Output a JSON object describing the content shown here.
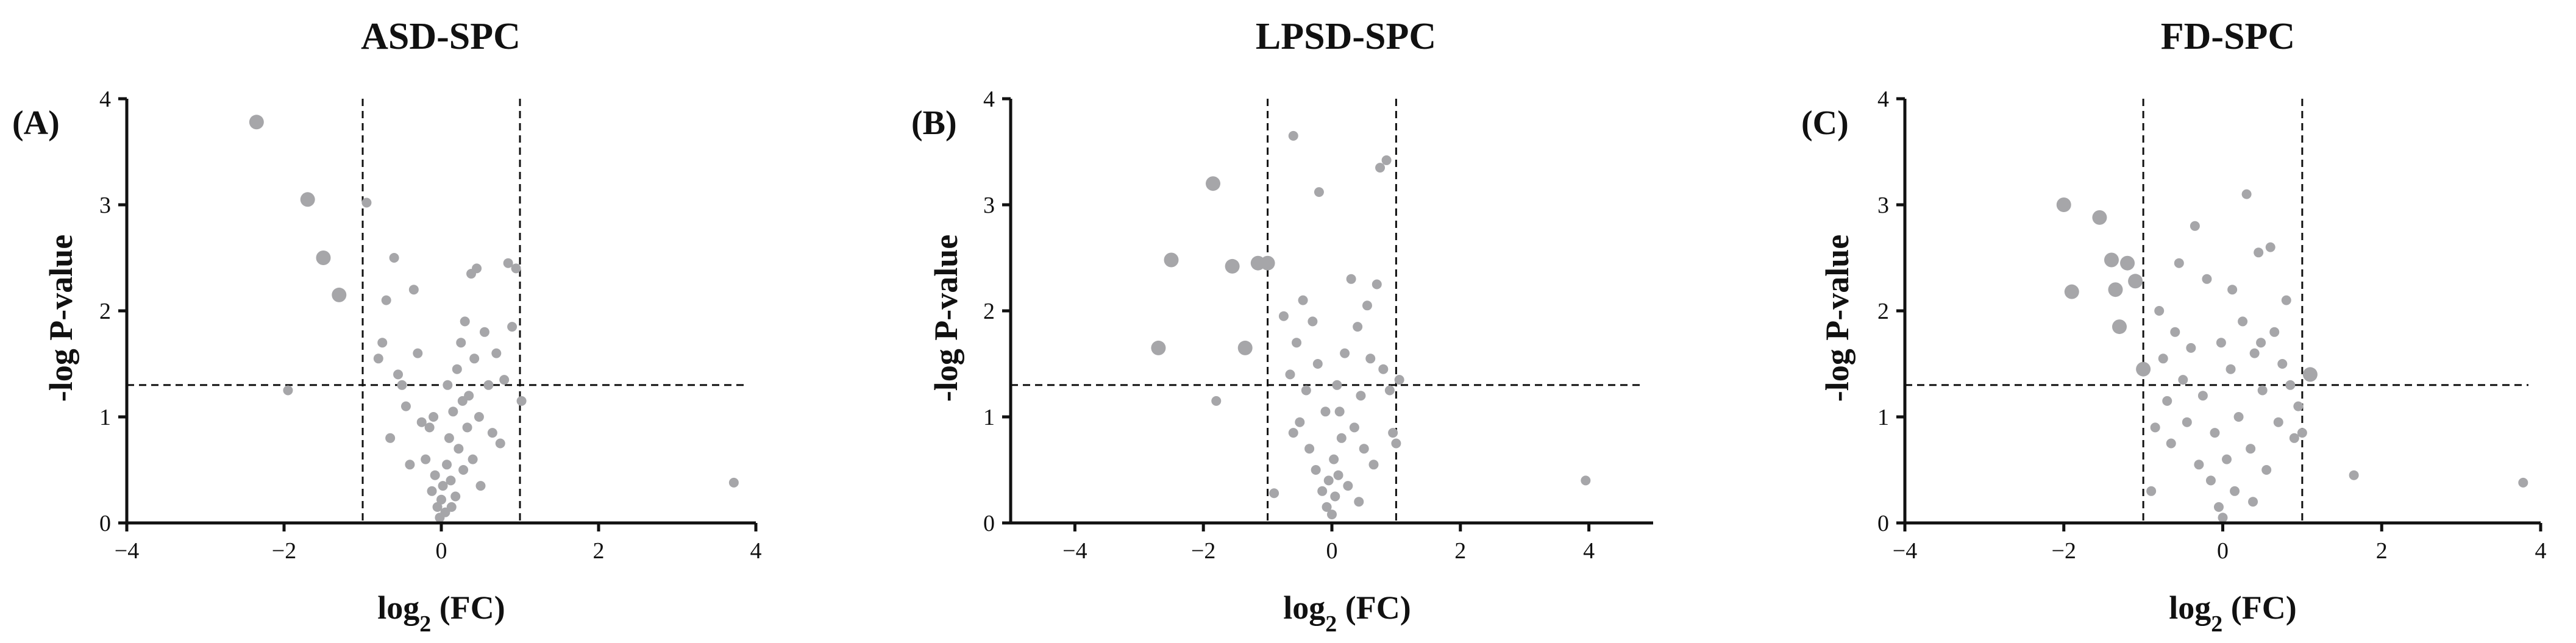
{
  "chart_data": [
    {
      "type": "scatter",
      "panel_label": "(A)",
      "title": "ASD-SPC",
      "xlabel": "log",
      "xlabel_sub": "2",
      "xlabel_suffix": " (FC)",
      "ylabel": "-log P-value",
      "xlim": [
        -4,
        4
      ],
      "ylim": [
        0,
        4
      ],
      "xticks": [
        -4,
        -2,
        0,
        2,
        4
      ],
      "yticks": [
        0,
        1,
        2,
        3,
        4
      ],
      "fc_threshold": [
        -1,
        1
      ],
      "p_threshold": 1.3,
      "grid": false,
      "point_color": "#a6a6a9",
      "large_points": [
        {
          "x": -2.35,
          "y": 3.78
        },
        {
          "x": -1.7,
          "y": 3.05
        },
        {
          "x": -1.5,
          "y": 2.5
        },
        {
          "x": -1.3,
          "y": 2.15
        }
      ],
      "points": [
        {
          "x": -1.95,
          "y": 1.25
        },
        {
          "x": -0.95,
          "y": 3.02
        },
        {
          "x": -0.8,
          "y": 1.55
        },
        {
          "x": -0.75,
          "y": 1.7
        },
        {
          "x": -0.7,
          "y": 2.1
        },
        {
          "x": -0.6,
          "y": 2.5
        },
        {
          "x": -0.55,
          "y": 1.4
        },
        {
          "x": -0.5,
          "y": 1.3
        },
        {
          "x": -0.45,
          "y": 1.1
        },
        {
          "x": -0.65,
          "y": 0.8
        },
        {
          "x": -0.35,
          "y": 2.2
        },
        {
          "x": -0.3,
          "y": 1.6
        },
        {
          "x": -0.25,
          "y": 0.95
        },
        {
          "x": -0.2,
          "y": 0.6
        },
        {
          "x": -0.15,
          "y": 0.9
        },
        {
          "x": -0.12,
          "y": 0.3
        },
        {
          "x": -0.08,
          "y": 0.45
        },
        {
          "x": -0.05,
          "y": 0.15
        },
        {
          "x": -0.02,
          "y": 0.05
        },
        {
          "x": 0.0,
          "y": 0.22
        },
        {
          "x": 0.02,
          "y": 0.35
        },
        {
          "x": 0.05,
          "y": 0.1
        },
        {
          "x": 0.07,
          "y": 0.55
        },
        {
          "x": 0.1,
          "y": 0.8
        },
        {
          "x": 0.12,
          "y": 0.4
        },
        {
          "x": 0.15,
          "y": 1.05
        },
        {
          "x": 0.18,
          "y": 0.25
        },
        {
          "x": 0.2,
          "y": 1.45
        },
        {
          "x": 0.22,
          "y": 0.7
        },
        {
          "x": 0.25,
          "y": 1.7
        },
        {
          "x": 0.28,
          "y": 0.5
        },
        {
          "x": 0.3,
          "y": 1.9
        },
        {
          "x": 0.33,
          "y": 0.9
        },
        {
          "x": 0.35,
          "y": 1.2
        },
        {
          "x": 0.38,
          "y": 2.35
        },
        {
          "x": 0.4,
          "y": 0.6
        },
        {
          "x": 0.42,
          "y": 1.55
        },
        {
          "x": 0.45,
          "y": 2.4
        },
        {
          "x": 0.48,
          "y": 1.0
        },
        {
          "x": 0.5,
          "y": 0.35
        },
        {
          "x": 0.55,
          "y": 1.8
        },
        {
          "x": 0.6,
          "y": 1.3
        },
        {
          "x": 0.65,
          "y": 0.85
        },
        {
          "x": 0.7,
          "y": 1.6
        },
        {
          "x": 0.75,
          "y": 0.75
        },
        {
          "x": 0.8,
          "y": 1.35
        },
        {
          "x": 0.85,
          "y": 2.45
        },
        {
          "x": 0.9,
          "y": 1.85
        },
        {
          "x": 0.95,
          "y": 2.4
        },
        {
          "x": 1.02,
          "y": 1.15
        },
        {
          "x": 3.72,
          "y": 0.38
        },
        {
          "x": -0.4,
          "y": 0.55
        },
        {
          "x": 0.08,
          "y": 1.3
        },
        {
          "x": -0.1,
          "y": 1.0
        },
        {
          "x": 0.13,
          "y": 0.15
        },
        {
          "x": 0.27,
          "y": 1.15
        }
      ]
    },
    {
      "type": "scatter",
      "panel_label": "(B)",
      "title": "LPSD-SPC",
      "xlabel": "log",
      "xlabel_sub": "2",
      "xlabel_suffix": " (FC)",
      "ylabel": "-log P-value",
      "xlim": [
        -5,
        5
      ],
      "ylim": [
        0,
        4
      ],
      "xticks": [
        -4,
        -2,
        0,
        2,
        4
      ],
      "yticks": [
        0,
        1,
        2,
        3,
        4
      ],
      "fc_threshold": [
        -1,
        1
      ],
      "p_threshold": 1.3,
      "grid": false,
      "point_color": "#a6a6a9",
      "large_points": [
        {
          "x": -2.7,
          "y": 1.65
        },
        {
          "x": -2.5,
          "y": 2.48
        },
        {
          "x": -1.85,
          "y": 3.2
        },
        {
          "x": -1.55,
          "y": 2.42
        },
        {
          "x": -1.35,
          "y": 1.65
        },
        {
          "x": -1.15,
          "y": 2.45
        },
        {
          "x": -1.0,
          "y": 2.45
        }
      ],
      "points": [
        {
          "x": -1.8,
          "y": 1.15
        },
        {
          "x": -0.6,
          "y": 3.65
        },
        {
          "x": -0.75,
          "y": 1.95
        },
        {
          "x": -0.65,
          "y": 1.4
        },
        {
          "x": -0.55,
          "y": 1.7
        },
        {
          "x": -0.5,
          "y": 0.95
        },
        {
          "x": -0.45,
          "y": 2.1
        },
        {
          "x": -0.4,
          "y": 1.25
        },
        {
          "x": -0.35,
          "y": 0.7
        },
        {
          "x": -0.3,
          "y": 1.9
        },
        {
          "x": -0.25,
          "y": 0.5
        },
        {
          "x": -0.2,
          "y": 3.12
        },
        {
          "x": -0.15,
          "y": 0.3
        },
        {
          "x": -0.1,
          "y": 1.05
        },
        {
          "x": -0.08,
          "y": 0.15
        },
        {
          "x": -0.05,
          "y": 0.4
        },
        {
          "x": 0.0,
          "y": 0.08
        },
        {
          "x": 0.03,
          "y": 0.6
        },
        {
          "x": 0.05,
          "y": 0.25
        },
        {
          "x": 0.08,
          "y": 1.3
        },
        {
          "x": 0.1,
          "y": 0.45
        },
        {
          "x": 0.15,
          "y": 0.8
        },
        {
          "x": 0.2,
          "y": 1.6
        },
        {
          "x": 0.25,
          "y": 0.35
        },
        {
          "x": 0.3,
          "y": 2.3
        },
        {
          "x": 0.35,
          "y": 0.9
        },
        {
          "x": 0.4,
          "y": 1.85
        },
        {
          "x": 0.45,
          "y": 1.2
        },
        {
          "x": 0.5,
          "y": 0.7
        },
        {
          "x": 0.55,
          "y": 2.05
        },
        {
          "x": 0.6,
          "y": 1.55
        },
        {
          "x": 0.65,
          "y": 0.55
        },
        {
          "x": 0.7,
          "y": 2.25
        },
        {
          "x": 0.75,
          "y": 3.35
        },
        {
          "x": 0.8,
          "y": 1.45
        },
        {
          "x": 0.85,
          "y": 3.42
        },
        {
          "x": 0.9,
          "y": 1.25
        },
        {
          "x": 0.95,
          "y": 0.85
        },
        {
          "x": 1.05,
          "y": 1.35
        },
        {
          "x": 1.0,
          "y": 0.75
        },
        {
          "x": 3.95,
          "y": 0.4
        },
        {
          "x": -0.9,
          "y": 0.28
        },
        {
          "x": -0.6,
          "y": 0.85
        },
        {
          "x": 0.12,
          "y": 1.05
        },
        {
          "x": -0.22,
          "y": 1.5
        },
        {
          "x": 0.42,
          "y": 0.2
        }
      ]
    },
    {
      "type": "scatter",
      "panel_label": "(C)",
      "title": "FD-SPC",
      "xlabel": "log",
      "xlabel_sub": "2",
      "xlabel_suffix": " (FC)",
      "ylabel": "-log P-value",
      "xlim": [
        -4,
        4
      ],
      "ylim": [
        0,
        4
      ],
      "xticks": [
        -4,
        -2,
        0,
        2,
        4
      ],
      "yticks": [
        0,
        1,
        2,
        3,
        4
      ],
      "fc_threshold": [
        -1,
        1
      ],
      "p_threshold": 1.3,
      "grid": false,
      "point_color": "#a6a6a9",
      "large_points": [
        {
          "x": -2.0,
          "y": 3.0
        },
        {
          "x": -1.9,
          "y": 2.18
        },
        {
          "x": -1.55,
          "y": 2.88
        },
        {
          "x": -1.4,
          "y": 2.48
        },
        {
          "x": -1.35,
          "y": 2.2
        },
        {
          "x": -1.3,
          "y": 1.85
        },
        {
          "x": -1.2,
          "y": 2.45
        },
        {
          "x": -1.1,
          "y": 2.28
        },
        {
          "x": -1.0,
          "y": 1.45
        },
        {
          "x": 1.1,
          "y": 1.4
        }
      ],
      "points": [
        {
          "x": -0.9,
          "y": 0.3
        },
        {
          "x": -0.8,
          "y": 2.0
        },
        {
          "x": -0.75,
          "y": 1.55
        },
        {
          "x": -0.7,
          "y": 1.15
        },
        {
          "x": -0.65,
          "y": 0.75
        },
        {
          "x": -0.6,
          "y": 1.8
        },
        {
          "x": -0.55,
          "y": 2.45
        },
        {
          "x": -0.5,
          "y": 1.35
        },
        {
          "x": -0.45,
          "y": 0.95
        },
        {
          "x": -0.4,
          "y": 1.65
        },
        {
          "x": -0.35,
          "y": 2.8
        },
        {
          "x": -0.3,
          "y": 0.55
        },
        {
          "x": -0.25,
          "y": 1.2
        },
        {
          "x": -0.2,
          "y": 2.3
        },
        {
          "x": -0.15,
          "y": 0.4
        },
        {
          "x": -0.1,
          "y": 0.85
        },
        {
          "x": -0.05,
          "y": 0.15
        },
        {
          "x": 0.0,
          "y": 0.05
        },
        {
          "x": 0.05,
          "y": 0.6
        },
        {
          "x": 0.1,
          "y": 1.45
        },
        {
          "x": 0.15,
          "y": 0.3
        },
        {
          "x": 0.2,
          "y": 1.0
        },
        {
          "x": 0.25,
          "y": 1.9
        },
        {
          "x": 0.3,
          "y": 3.1
        },
        {
          "x": 0.35,
          "y": 0.7
        },
        {
          "x": 0.4,
          "y": 1.6
        },
        {
          "x": 0.45,
          "y": 2.55
        },
        {
          "x": 0.5,
          "y": 1.25
        },
        {
          "x": 0.55,
          "y": 0.5
        },
        {
          "x": 0.6,
          "y": 2.6
        },
        {
          "x": 0.65,
          "y": 1.8
        },
        {
          "x": 0.7,
          "y": 0.95
        },
        {
          "x": 0.75,
          "y": 1.5
        },
        {
          "x": 0.8,
          "y": 2.1
        },
        {
          "x": 0.85,
          "y": 1.3
        },
        {
          "x": 0.9,
          "y": 0.8
        },
        {
          "x": 0.95,
          "y": 1.1
        },
        {
          "x": 1.0,
          "y": 0.85
        },
        {
          "x": 1.65,
          "y": 0.45
        },
        {
          "x": 3.78,
          "y": 0.38
        },
        {
          "x": -0.85,
          "y": 0.9
        },
        {
          "x": 0.12,
          "y": 2.2
        },
        {
          "x": -0.02,
          "y": 1.7
        },
        {
          "x": 0.38,
          "y": 0.2
        },
        {
          "x": 0.48,
          "y": 1.7
        }
      ]
    }
  ]
}
